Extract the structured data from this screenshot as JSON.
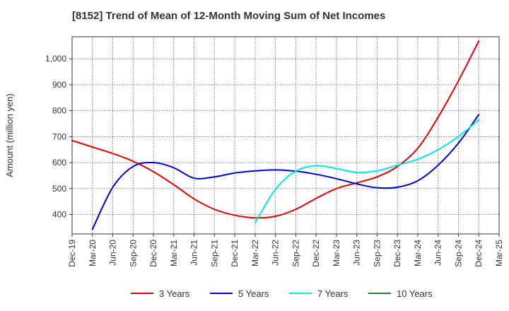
{
  "chart_data": {
    "type": "line",
    "title": "[8152]  Trend of Mean of 12-Month Moving Sum of Net Incomes",
    "ylabel": "Amount (million yen)",
    "xlabel": "",
    "ylim": [
      325,
      1085
    ],
    "yticks": [
      400,
      500,
      600,
      700,
      800,
      900,
      1000
    ],
    "ytick_labels": [
      "400",
      "500",
      "600",
      "700",
      "800",
      "900",
      "1,000"
    ],
    "xticks": [
      "Dec-19",
      "Mar-20",
      "Jun-20",
      "Sep-20",
      "Dec-20",
      "Mar-21",
      "Jun-21",
      "Sep-21",
      "Dec-21",
      "Mar-22",
      "Jun-22",
      "Sep-22",
      "Dec-22",
      "Mar-23",
      "Jun-23",
      "Sep-23",
      "Dec-23",
      "Mar-24",
      "Jun-24",
      "Sep-24",
      "Dec-24",
      "Mar-25"
    ],
    "grid": true,
    "legend_position": "bottom",
    "series": [
      {
        "name": "3 Years",
        "color": "#e00000",
        "x": [
          "Dec-19",
          "Mar-20",
          "Jun-20",
          "Sep-20",
          "Dec-20",
          "Mar-21",
          "Jun-21",
          "Sep-21",
          "Dec-21",
          "Mar-22",
          "Jun-22",
          "Sep-22",
          "Dec-22",
          "Mar-23",
          "Jun-23",
          "Sep-23",
          "Dec-23",
          "Mar-24",
          "Jun-24",
          "Sep-24",
          "Dec-24"
        ],
        "values": [
          685,
          660,
          635,
          605,
          565,
          515,
          460,
          420,
          397,
          387,
          393,
          420,
          462,
          500,
          522,
          545,
          585,
          655,
          775,
          915,
          1068
        ]
      },
      {
        "name": "5 Years",
        "color": "#0000cc",
        "x": [
          "Mar-20",
          "Jun-20",
          "Sep-20",
          "Dec-20",
          "Mar-21",
          "Jun-21",
          "Sep-21",
          "Dec-21",
          "Mar-22",
          "Jun-22",
          "Sep-22",
          "Dec-22",
          "Mar-23",
          "Jun-23",
          "Sep-23",
          "Dec-23",
          "Mar-24",
          "Jun-24",
          "Sep-24",
          "Dec-24"
        ],
        "values": [
          343,
          505,
          585,
          600,
          580,
          540,
          545,
          560,
          568,
          572,
          567,
          555,
          538,
          518,
          503,
          505,
          530,
          590,
          675,
          785
        ]
      },
      {
        "name": "7 Years",
        "color": "#00e5ee",
        "x": [
          "Mar-22",
          "Jun-22",
          "Sep-22",
          "Dec-22",
          "Mar-23",
          "Jun-23",
          "Sep-23",
          "Dec-23",
          "Mar-24",
          "Jun-24",
          "Sep-24",
          "Dec-24"
        ],
        "values": [
          367,
          497,
          567,
          588,
          577,
          562,
          568,
          590,
          613,
          650,
          700,
          765
        ]
      },
      {
        "name": "10 Years",
        "color": "#1a8a1a",
        "x": [],
        "values": []
      }
    ]
  }
}
